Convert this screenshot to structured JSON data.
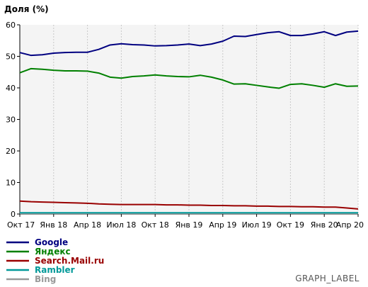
{
  "chart_data": {
    "type": "line",
    "title": "Доля (%)",
    "ylim": [
      0,
      60
    ],
    "y_ticks": [
      0,
      10,
      20,
      30,
      40,
      50,
      60
    ],
    "grid": "vertical-only",
    "x_tick_labels": [
      "Окт 17",
      "Янв 18",
      "Апр 18",
      "Июл 18",
      "Окт 18",
      "Янв 19",
      "Апр 19",
      "Июл 19",
      "Окт 19",
      "Янв 20",
      "Апр 20"
    ],
    "n_points": 31,
    "legend_position": "bottom-left",
    "series": [
      {
        "name": "Google",
        "color": "#000080",
        "values": [
          51.2,
          50.3,
          50.5,
          51.0,
          51.2,
          51.3,
          51.3,
          52.2,
          53.6,
          54.0,
          53.7,
          53.6,
          53.3,
          53.4,
          53.6,
          53.9,
          53.4,
          53.9,
          54.8,
          56.4,
          56.3,
          56.9,
          57.5,
          57.8,
          56.6,
          56.6,
          57.1,
          57.8,
          56.6,
          57.7,
          58.0
        ]
      },
      {
        "name": "Яндекс",
        "color": "#008000",
        "values": [
          44.8,
          46.1,
          45.9,
          45.6,
          45.4,
          45.4,
          45.3,
          44.7,
          43.4,
          43.1,
          43.6,
          43.8,
          44.1,
          43.8,
          43.6,
          43.5,
          44.0,
          43.4,
          42.5,
          41.2,
          41.3,
          40.8,
          40.3,
          39.9,
          41.1,
          41.3,
          40.8,
          40.2,
          41.3,
          40.5,
          40.6
        ]
      },
      {
        "name": "Search.Mail.ru",
        "color": "#990000",
        "values": [
          4.1,
          3.9,
          3.8,
          3.7,
          3.6,
          3.5,
          3.4,
          3.2,
          3.1,
          3.0,
          3.0,
          3.0,
          3.0,
          2.9,
          2.9,
          2.8,
          2.8,
          2.7,
          2.7,
          2.6,
          2.6,
          2.5,
          2.5,
          2.4,
          2.4,
          2.3,
          2.3,
          2.2,
          2.2,
          1.9,
          1.6
        ]
      },
      {
        "name": "Rambler",
        "color": "#009999",
        "values": [
          0.4,
          0.4,
          0.4,
          0.4,
          0.4,
          0.4,
          0.4,
          0.4,
          0.4,
          0.4,
          0.4,
          0.4,
          0.4,
          0.4,
          0.4,
          0.4,
          0.4,
          0.4,
          0.4,
          0.4,
          0.4,
          0.4,
          0.4,
          0.4,
          0.4,
          0.4,
          0.4,
          0.4,
          0.4,
          0.4,
          0.4
        ]
      },
      {
        "name": "Bing",
        "color": "#999999",
        "values": [
          0.2,
          0.2,
          0.2,
          0.2,
          0.2,
          0.2,
          0.2,
          0.2,
          0.2,
          0.2,
          0.2,
          0.2,
          0.2,
          0.2,
          0.2,
          0.2,
          0.2,
          0.2,
          0.2,
          0.2,
          0.2,
          0.2,
          0.2,
          0.2,
          0.2,
          0.2,
          0.2,
          0.2,
          0.2,
          0.2,
          0.2
        ]
      }
    ]
  },
  "footer_label": "GRAPH_LABEL",
  "colors": {
    "plot_background": "#f4f4f4",
    "grid": "#c8c8c8",
    "axis": "#000000"
  }
}
